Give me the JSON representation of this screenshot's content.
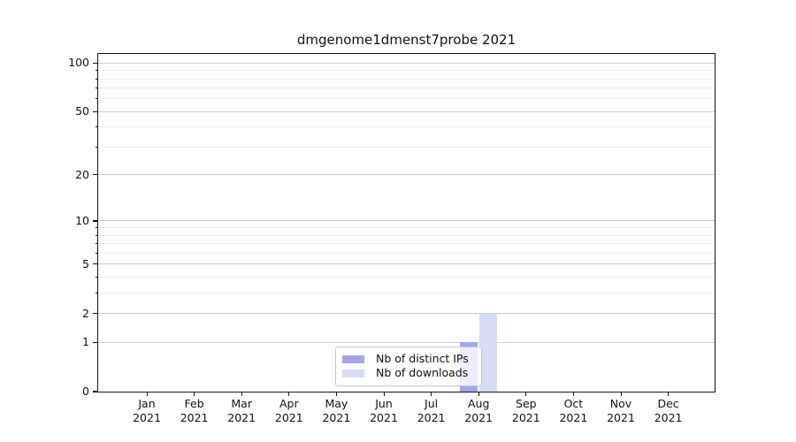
{
  "chart_data": {
    "type": "bar",
    "title": "dmgenome1dmenst7probe 2021",
    "categories": [
      "Jan 2021",
      "Feb 2021",
      "Mar 2021",
      "Apr 2021",
      "May 2021",
      "Jun 2021",
      "Jul 2021",
      "Aug 2021",
      "Sep 2021",
      "Oct 2021",
      "Nov 2021",
      "Dec 2021"
    ],
    "series": [
      {
        "name": "Nb of distinct IPs",
        "color": "#a5a5e9",
        "values": [
          0,
          0,
          0,
          0,
          0,
          0,
          0,
          1,
          0,
          0,
          0,
          0
        ]
      },
      {
        "name": "Nb of downloads",
        "color": "#dadaf5",
        "values": [
          0,
          0,
          0,
          0,
          0,
          0,
          0,
          2,
          0,
          0,
          0,
          0
        ]
      }
    ],
    "xlabel": "",
    "ylabel": "",
    "y_scale": "log10(1+y)",
    "y_major_ticks": [
      0,
      1,
      2,
      5,
      10,
      20,
      50,
      100
    ],
    "y_minor_gridlines": [
      3,
      4,
      6,
      7,
      8,
      9,
      30,
      40,
      60,
      70,
      80,
      90
    ],
    "ylim": [
      0,
      112
    ],
    "grid": "horizontal",
    "legend_position": "lower center inside",
    "colors": {
      "major_grid": "#cdcdcd",
      "minor_grid": "#ededed",
      "axis": "#141414",
      "text": "#111111",
      "background": "#ffffff"
    }
  }
}
